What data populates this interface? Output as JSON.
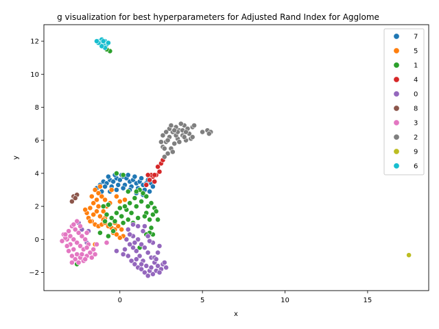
{
  "chart_data": {
    "type": "scatter",
    "title": "g visualization for best hyperparameters for Adjusted Rand Index for Agglome",
    "xlabel": "x",
    "ylabel": "y",
    "xlim": [
      -4.6,
      18.7
    ],
    "ylim": [
      -3.1,
      13.0
    ],
    "xticks": [
      0,
      5,
      10,
      15
    ],
    "yticks": [
      -2,
      0,
      2,
      4,
      6,
      8,
      10,
      12
    ],
    "grid": false,
    "legend_position": "top-right",
    "legend": [
      "7",
      "5",
      "1",
      "4",
      "0",
      "8",
      "3",
      "2",
      "9",
      "6"
    ],
    "series": [
      {
        "name": "7",
        "color": "#1f77b4",
        "points": [
          [
            -1.4,
            3.1
          ],
          [
            -1.2,
            3.3
          ],
          [
            -1.0,
            3.5
          ],
          [
            -0.8,
            3.4
          ],
          [
            -0.6,
            3.6
          ],
          [
            -0.4,
            3.5
          ],
          [
            -0.2,
            3.7
          ],
          [
            0.0,
            3.6
          ],
          [
            0.2,
            3.8
          ],
          [
            0.4,
            3.7
          ],
          [
            0.6,
            3.5
          ],
          [
            0.8,
            3.6
          ],
          [
            1.0,
            3.4
          ],
          [
            1.2,
            3.5
          ],
          [
            1.4,
            3.3
          ],
          [
            1.6,
            3.4
          ],
          [
            -0.9,
            3.2
          ],
          [
            -0.5,
            3.2
          ],
          [
            -0.1,
            3.3
          ],
          [
            0.3,
            3.3
          ],
          [
            0.7,
            3.2
          ],
          [
            1.1,
            3.1
          ],
          [
            1.5,
            3.0
          ],
          [
            -0.7,
            3.8
          ],
          [
            -0.3,
            3.9
          ],
          [
            0.1,
            3.9
          ],
          [
            0.5,
            3.9
          ],
          [
            0.9,
            3.8
          ],
          [
            1.3,
            3.7
          ],
          [
            1.7,
            3.6
          ],
          [
            1.9,
            3.4
          ],
          [
            2.0,
            3.2
          ],
          [
            -1.1,
            2.9
          ],
          [
            -0.6,
            2.9
          ],
          [
            0.6,
            3.0
          ],
          [
            1.0,
            2.8
          ],
          [
            1.4,
            2.7
          ],
          [
            1.8,
            2.9
          ],
          [
            0.2,
            3.1
          ],
          [
            -0.2,
            3.0
          ]
        ]
      },
      {
        "name": "5",
        "color": "#ff7f0e",
        "points": [
          [
            -1.5,
            3.0
          ],
          [
            -1.3,
            2.8
          ],
          [
            -1.1,
            2.6
          ],
          [
            -0.9,
            2.4
          ],
          [
            -1.4,
            2.4
          ],
          [
            -1.6,
            2.2
          ],
          [
            -1.8,
            1.9
          ],
          [
            -2.0,
            1.6
          ],
          [
            -1.9,
            1.3
          ],
          [
            -1.7,
            1.1
          ],
          [
            -1.5,
            0.9
          ],
          [
            -1.3,
            0.8
          ],
          [
            -1.1,
            0.9
          ],
          [
            -0.9,
            1.0
          ],
          [
            -0.7,
            0.8
          ],
          [
            -0.5,
            0.7
          ],
          [
            -0.3,
            0.6
          ],
          [
            -0.1,
            0.8
          ],
          [
            0.1,
            0.6
          ],
          [
            0.2,
            0.2
          ],
          [
            0.0,
            0.1
          ],
          [
            -0.4,
            0.4
          ],
          [
            -1.2,
            1.4
          ],
          [
            -1.4,
            1.7
          ],
          [
            -1.6,
            1.5
          ],
          [
            -1.0,
            1.7
          ],
          [
            -0.8,
            2.0
          ],
          [
            -0.6,
            2.2
          ],
          [
            -1.7,
            2.6
          ],
          [
            -1.2,
            3.2
          ],
          [
            -0.5,
            3.0
          ],
          [
            0.0,
            2.3
          ],
          [
            0.3,
            2.4
          ],
          [
            -0.2,
            2.6
          ],
          [
            -1.8,
            1.1
          ],
          [
            -2.1,
            1.8
          ],
          [
            -1.3,
            2.0
          ],
          [
            -0.9,
            1.3
          ],
          [
            -0.3,
            1.0
          ],
          [
            -0.2,
            0.3
          ],
          [
            -1.5,
            -0.3
          ],
          [
            -1.0,
            1.2
          ]
        ]
      },
      {
        "name": "1",
        "color": "#2ca02c",
        "points": [
          [
            -0.8,
            1.5
          ],
          [
            -0.5,
            1.3
          ],
          [
            -0.2,
            1.6
          ],
          [
            0.1,
            1.4
          ],
          [
            0.4,
            1.8
          ],
          [
            0.7,
            1.6
          ],
          [
            1.0,
            2.0
          ],
          [
            1.3,
            2.3
          ],
          [
            1.6,
            2.6
          ],
          [
            1.9,
            2.2
          ],
          [
            2.1,
            1.9
          ],
          [
            2.0,
            1.5
          ],
          [
            1.8,
            1.2
          ],
          [
            1.6,
            1.6
          ],
          [
            1.4,
            2.8
          ],
          [
            1.2,
            3.0
          ],
          [
            0.9,
            2.5
          ],
          [
            0.6,
            2.2
          ],
          [
            0.3,
            2.0
          ],
          [
            0.0,
            1.9
          ],
          [
            -0.3,
            1.1
          ],
          [
            -0.6,
            0.9
          ],
          [
            -0.9,
            1.1
          ],
          [
            -0.4,
            0.5
          ],
          [
            0.2,
            1.0
          ],
          [
            0.5,
            1.2
          ],
          [
            0.8,
            1.0
          ],
          [
            1.1,
            1.3
          ],
          [
            2.2,
            1.7
          ],
          [
            1.7,
            2.0
          ],
          [
            1.5,
            1.4
          ],
          [
            1.9,
            0.7
          ],
          [
            2.0,
            0.3
          ],
          [
            2.3,
            1.2
          ],
          [
            1.8,
            0.4
          ],
          [
            0.2,
            3.9
          ],
          [
            -0.2,
            4.0
          ],
          [
            0.5,
            2.9
          ],
          [
            -0.7,
            2.1
          ],
          [
            -1.0,
            2.0
          ],
          [
            -1.2,
            0.4
          ],
          [
            1.6,
            0.3
          ],
          [
            -2.6,
            -1.5
          ],
          [
            -2.9,
            -1.4
          ],
          [
            -0.7,
            0.2
          ],
          [
            -0.6,
            11.4
          ],
          [
            -0.8,
            11.5
          ],
          [
            3.1,
            5.5
          ],
          [
            1.2,
            -0.5
          ],
          [
            1.0,
            2.9
          ]
        ]
      },
      {
        "name": "4",
        "color": "#d62728",
        "points": [
          [
            1.6,
            3.3
          ],
          [
            1.8,
            3.6
          ],
          [
            2.0,
            3.8
          ],
          [
            2.2,
            3.9
          ],
          [
            2.4,
            4.1
          ],
          [
            2.3,
            4.4
          ],
          [
            2.5,
            4.6
          ],
          [
            2.6,
            4.8
          ],
          [
            2.1,
            3.5
          ],
          [
            1.9,
            3.9
          ],
          [
            1.7,
            3.9
          ],
          [
            2.1,
            3.9
          ]
        ]
      },
      {
        "name": "0",
        "color": "#9467bd",
        "points": [
          [
            0.5,
            0.6
          ],
          [
            0.8,
            0.2
          ],
          [
            1.1,
            0.0
          ],
          [
            1.3,
            -0.3
          ],
          [
            1.5,
            -0.5
          ],
          [
            1.7,
            -0.8
          ],
          [
            1.9,
            -1.1
          ],
          [
            2.1,
            -1.4
          ],
          [
            2.3,
            -1.6
          ],
          [
            2.5,
            -1.8
          ],
          [
            2.6,
            -1.5
          ],
          [
            2.2,
            -1.9
          ],
          [
            2.0,
            -2.1
          ],
          [
            1.8,
            -1.9
          ],
          [
            1.6,
            -1.6
          ],
          [
            1.4,
            -1.3
          ],
          [
            1.2,
            -1.0
          ],
          [
            1.0,
            -0.7
          ],
          [
            0.8,
            -0.5
          ],
          [
            0.6,
            -0.3
          ],
          [
            0.4,
            0.0
          ],
          [
            0.3,
            -0.6
          ],
          [
            0.5,
            -1.0
          ],
          [
            0.7,
            -1.3
          ],
          [
            0.9,
            -1.5
          ],
          [
            1.1,
            -1.7
          ],
          [
            1.3,
            -1.8
          ],
          [
            1.5,
            -2.0
          ],
          [
            1.7,
            -2.2
          ],
          [
            1.9,
            -1.7
          ],
          [
            2.1,
            -1.1
          ],
          [
            2.3,
            -0.8
          ],
          [
            2.4,
            -0.4
          ],
          [
            2.0,
            -0.2
          ],
          [
            1.7,
            0.2
          ],
          [
            1.4,
            0.5
          ],
          [
            1.1,
            0.8
          ],
          [
            0.8,
            0.9
          ],
          [
            1.5,
            0.8
          ],
          [
            2.7,
            -1.4
          ],
          [
            2.8,
            -1.7
          ],
          [
            -2.3,
            0.6
          ],
          [
            -1.9,
            0.5
          ],
          [
            -2.5,
            1.0
          ],
          [
            -2.0,
            -0.2
          ],
          [
            0.2,
            -0.9
          ],
          [
            -0.2,
            -0.7
          ],
          [
            2.4,
            -2.0
          ],
          [
            2.2,
            -1.2
          ],
          [
            1.8,
            -0.1
          ],
          [
            0.6,
            0.3
          ],
          [
            1.0,
            -1.2
          ],
          [
            1.3,
            -1.5
          ],
          [
            0.9,
            -0.2
          ]
        ]
      },
      {
        "name": "8",
        "color": "#8c564b",
        "points": [
          [
            -2.8,
            2.6
          ],
          [
            -2.6,
            2.7
          ],
          [
            -2.9,
            2.3
          ],
          [
            -2.7,
            2.5
          ]
        ]
      },
      {
        "name": "3",
        "color": "#e377c2",
        "points": [
          [
            -3.4,
            0.3
          ],
          [
            -3.2,
            0.0
          ],
          [
            -3.0,
            -0.3
          ],
          [
            -2.8,
            -0.6
          ],
          [
            -2.6,
            -0.9
          ],
          [
            -2.4,
            -1.1
          ],
          [
            -2.2,
            -1.3
          ],
          [
            -2.0,
            -1.0
          ],
          [
            -1.8,
            -0.8
          ],
          [
            -1.6,
            -0.6
          ],
          [
            -1.9,
            -0.3
          ],
          [
            -2.1,
            0.0
          ],
          [
            -2.3,
            0.2
          ],
          [
            -2.5,
            0.4
          ],
          [
            -2.7,
            0.6
          ],
          [
            -2.9,
            0.8
          ],
          [
            -3.1,
            0.5
          ],
          [
            -3.3,
            0.1
          ],
          [
            -3.5,
            -0.1
          ],
          [
            -3.0,
            0.2
          ],
          [
            -2.8,
            0.0
          ],
          [
            -2.6,
            -0.2
          ],
          [
            -2.4,
            -0.4
          ],
          [
            -2.2,
            -0.6
          ],
          [
            -2.0,
            -0.5
          ],
          [
            -2.7,
            -1.2
          ],
          [
            -2.9,
            -1.0
          ],
          [
            -3.1,
            -0.7
          ],
          [
            -2.5,
            -1.4
          ],
          [
            -2.3,
            -0.9
          ],
          [
            -1.7,
            -1.1
          ],
          [
            -1.5,
            -0.9
          ],
          [
            -2.6,
            1.1
          ],
          [
            -2.8,
            0.9
          ],
          [
            -2.4,
            0.8
          ],
          [
            -3.2,
            -0.4
          ],
          [
            -1.4,
            -0.3
          ],
          [
            -0.8,
            -0.2
          ],
          [
            -2.1,
            -1.2
          ],
          [
            -2.9,
            -1.4
          ],
          [
            -3.3,
            0.3
          ],
          [
            -2.0,
            0.4
          ]
        ]
      },
      {
        "name": "2",
        "color": "#7f7f7f",
        "points": [
          [
            2.6,
            5.6
          ],
          [
            2.8,
            5.9
          ],
          [
            3.0,
            6.2
          ],
          [
            3.2,
            6.5
          ],
          [
            3.4,
            6.8
          ],
          [
            3.6,
            6.6
          ],
          [
            3.8,
            6.3
          ],
          [
            4.0,
            6.0
          ],
          [
            4.2,
            6.4
          ],
          [
            4.4,
            6.8
          ],
          [
            3.9,
            6.9
          ],
          [
            3.5,
            6.1
          ],
          [
            3.3,
            5.8
          ],
          [
            3.1,
            5.5
          ],
          [
            2.9,
            5.2
          ],
          [
            2.7,
            5.0
          ],
          [
            3.0,
            6.7
          ],
          [
            3.7,
            7.0
          ],
          [
            4.1,
            6.7
          ],
          [
            4.3,
            6.1
          ],
          [
            3.6,
            5.9
          ],
          [
            3.4,
            6.3
          ],
          [
            2.8,
            6.5
          ],
          [
            3.2,
            5.3
          ],
          [
            2.5,
            5.9
          ],
          [
            2.6,
            6.3
          ],
          [
            3.8,
            6.6
          ],
          [
            4.5,
            6.9
          ],
          [
            5.0,
            6.5
          ],
          [
            5.3,
            6.6
          ],
          [
            5.5,
            6.5
          ],
          [
            5.4,
            6.4
          ],
          [
            2.9,
            6.0
          ],
          [
            3.5,
            6.5
          ],
          [
            4.0,
            6.5
          ],
          [
            3.1,
            6.9
          ],
          [
            3.9,
            6.2
          ],
          [
            2.7,
            5.5
          ],
          [
            3.3,
            6.6
          ],
          [
            4.4,
            6.2
          ]
        ]
      },
      {
        "name": "9",
        "color": "#bcbd22",
        "points": [
          [
            17.5,
            -0.95
          ]
        ]
      },
      {
        "name": "6",
        "color": "#17becf",
        "points": [
          [
            -1.3,
            12.0
          ],
          [
            -1.1,
            12.1
          ],
          [
            -0.9,
            12.0
          ],
          [
            -0.8,
            11.8
          ],
          [
            -1.0,
            11.8
          ],
          [
            -1.2,
            11.9
          ],
          [
            -0.9,
            11.6
          ],
          [
            -1.1,
            11.7
          ],
          [
            -1.3,
            11.9
          ],
          [
            -0.7,
            11.9
          ],
          [
            -1.0,
            12.0
          ],
          [
            -1.4,
            12.0
          ]
        ]
      }
    ]
  }
}
